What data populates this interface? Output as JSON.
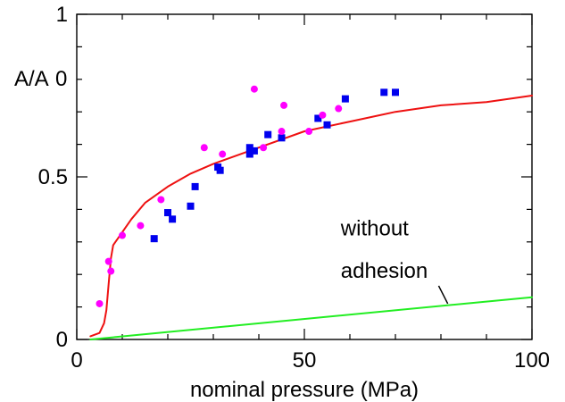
{
  "chart_data": {
    "type": "scatter",
    "title": "",
    "xlabel": "nominal pressure (MPa)",
    "ylabel": "A/A",
    "ylabel_subscript": "0",
    "xlim": [
      0,
      100
    ],
    "ylim": [
      0,
      1
    ],
    "x_ticks": [
      0,
      50,
      100
    ],
    "x_tick_labels": [
      "0",
      "50",
      "100"
    ],
    "y_ticks": [
      0,
      0.5,
      1
    ],
    "y_tick_labels": [
      "0",
      "0.5",
      "1"
    ],
    "grid": false,
    "legend": "none",
    "series": [
      {
        "kind": "points",
        "marker": "square",
        "color": "#0000ee",
        "points": [
          [
            17,
            0.31
          ],
          [
            20,
            0.39
          ],
          [
            21,
            0.37
          ],
          [
            25,
            0.41
          ],
          [
            26,
            0.47
          ],
          [
            31,
            0.53
          ],
          [
            31.5,
            0.52
          ],
          [
            38,
            0.59
          ],
          [
            38,
            0.57
          ],
          [
            39,
            0.58
          ],
          [
            42,
            0.63
          ],
          [
            45,
            0.62
          ],
          [
            53,
            0.68
          ],
          [
            55,
            0.66
          ],
          [
            59,
            0.74
          ],
          [
            67.5,
            0.76
          ],
          [
            70,
            0.76
          ]
        ]
      },
      {
        "kind": "points",
        "marker": "circle",
        "color": "#ff00ff",
        "points": [
          [
            5,
            0.11
          ],
          [
            7,
            0.24
          ],
          [
            7.5,
            0.21
          ],
          [
            10,
            0.32
          ],
          [
            14,
            0.35
          ],
          [
            18.5,
            0.43
          ],
          [
            28,
            0.59
          ],
          [
            32,
            0.57
          ],
          [
            39,
            0.77
          ],
          [
            41,
            0.59
          ],
          [
            45,
            0.64
          ],
          [
            45.5,
            0.72
          ],
          [
            51,
            0.64
          ],
          [
            54,
            0.69
          ],
          [
            57.5,
            0.71
          ]
        ]
      },
      {
        "kind": "line",
        "color": "#ee1111",
        "points": [
          [
            3,
            0.01
          ],
          [
            5,
            0.02
          ],
          [
            6,
            0.05
          ],
          [
            6.5,
            0.09
          ],
          [
            7,
            0.17
          ],
          [
            7.5,
            0.25
          ],
          [
            8,
            0.29
          ],
          [
            9,
            0.31
          ],
          [
            10,
            0.33
          ],
          [
            12,
            0.37
          ],
          [
            15,
            0.42
          ],
          [
            20,
            0.47
          ],
          [
            25,
            0.51
          ],
          [
            30,
            0.54
          ],
          [
            40,
            0.59
          ],
          [
            50,
            0.64
          ],
          [
            60,
            0.67
          ],
          [
            70,
            0.7
          ],
          [
            80,
            0.72
          ],
          [
            90,
            0.73
          ],
          [
            100,
            0.75
          ]
        ]
      },
      {
        "kind": "line",
        "color": "#22ee22",
        "points": [
          [
            3,
            0.0
          ],
          [
            100,
            0.13
          ]
        ]
      }
    ],
    "annotations": [
      {
        "text": "without",
        "x": 58,
        "y": 0.32
      },
      {
        "text": "adhesion",
        "x": 58,
        "y": 0.19
      }
    ]
  }
}
